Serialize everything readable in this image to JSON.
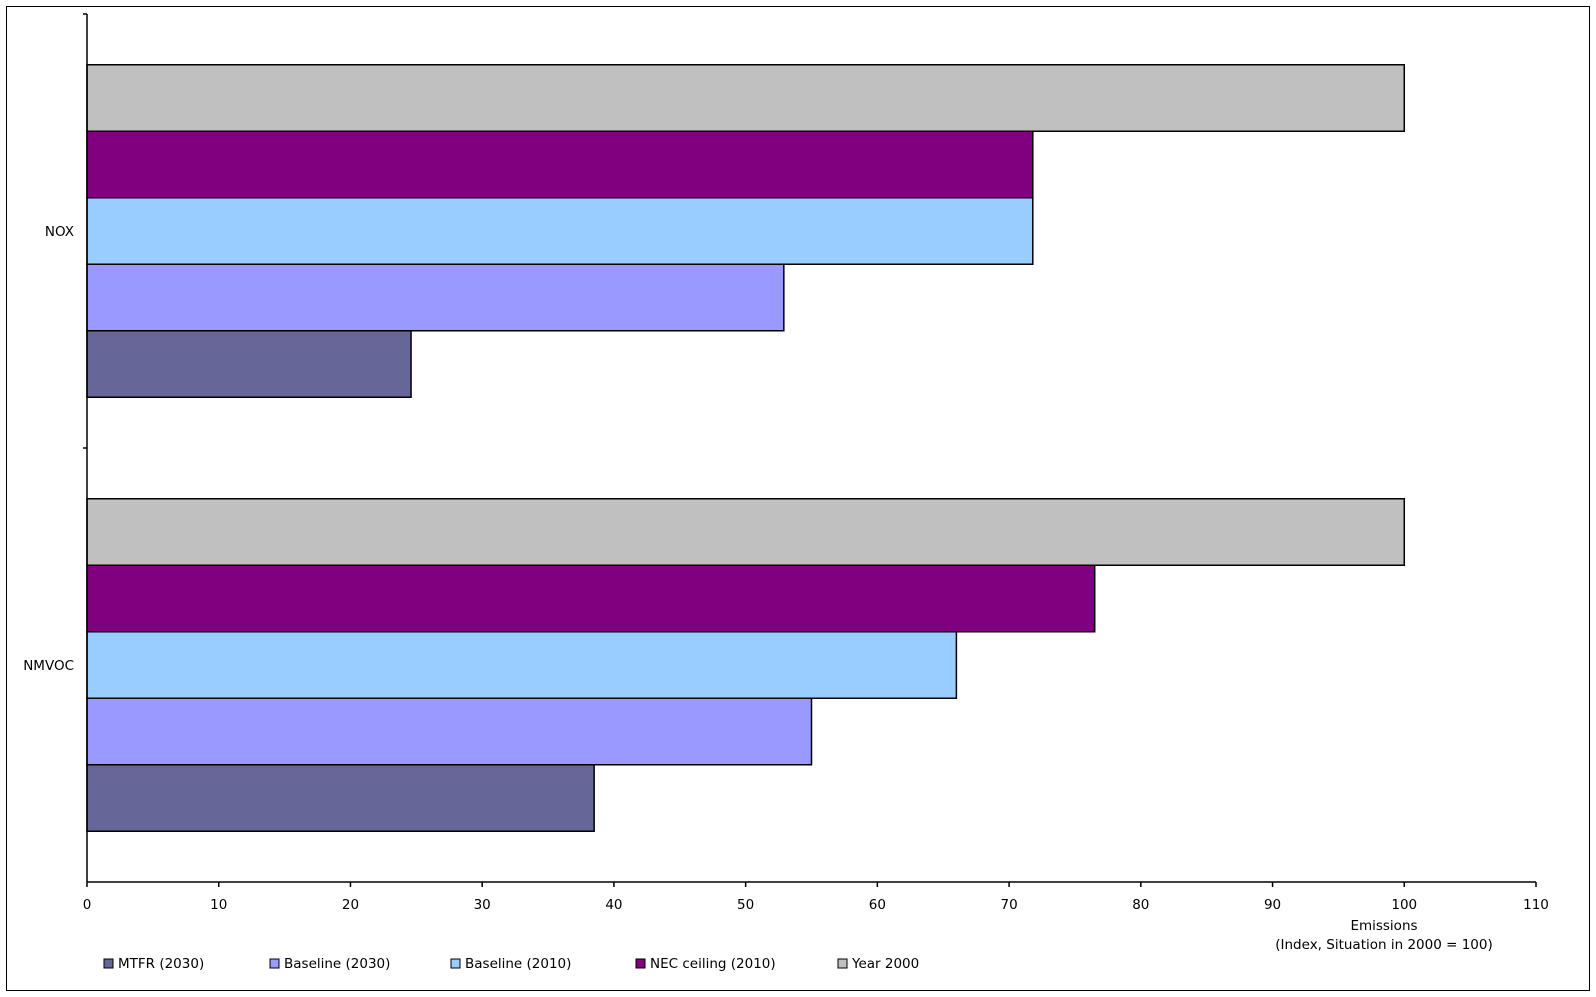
{
  "chart_data": {
    "type": "bar",
    "orientation": "horizontal",
    "categories": [
      "NOX",
      "NMVOC"
    ],
    "series": [
      {
        "name": "MTFR (2030)",
        "color": "#666699",
        "values": [
          24.6,
          38.5
        ]
      },
      {
        "name": "Baseline (2030)",
        "color": "#9999ff",
        "values": [
          52.9,
          55.0
        ]
      },
      {
        "name": "Baseline (2010)",
        "color": "#99ccff",
        "values": [
          71.8,
          66.0
        ]
      },
      {
        "name": "NEC ceiling (2010)",
        "color": "#800080",
        "values": [
          71.8,
          76.5
        ]
      },
      {
        "name": "Year 2000",
        "color": "#c0c0c0",
        "values": [
          100,
          100
        ]
      }
    ],
    "xlim": [
      0,
      110
    ],
    "xticks": [
      0,
      10,
      20,
      30,
      40,
      50,
      60,
      70,
      80,
      90,
      100,
      110
    ],
    "xlabel_lines": [
      "Emissions",
      "(Index, Situation in 2000 = 100)"
    ],
    "grid": false,
    "legend_placement": "bottom-left"
  }
}
